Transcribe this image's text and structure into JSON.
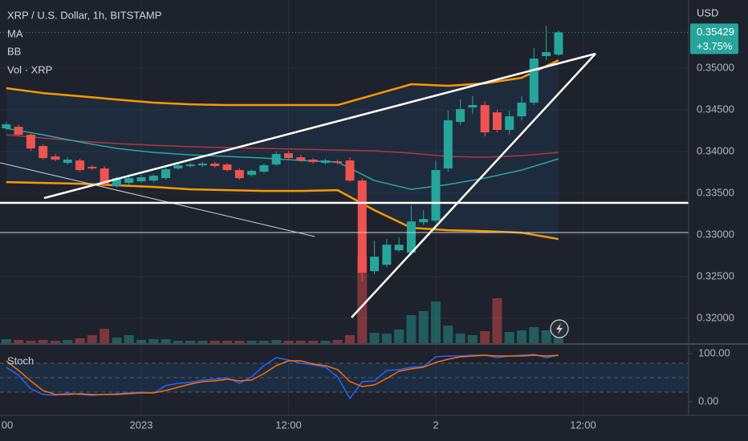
{
  "header": {
    "symbol": "XRP / U.S. Dollar, 1h, BITSTAMP",
    "indicators": [
      "MA",
      "BB",
      "Vol · XRP"
    ]
  },
  "chart_data": [
    {
      "type": "candlestick",
      "currency": "USD",
      "x": [
        -11,
        -10,
        -9,
        -8,
        -7,
        -6,
        -5,
        -4,
        -3,
        -2,
        -1,
        0,
        1,
        2,
        3,
        4,
        5,
        6,
        7,
        8,
        9,
        10,
        11,
        12,
        13,
        14,
        15,
        16,
        17,
        18,
        19,
        20,
        21,
        22,
        23,
        24,
        25,
        26,
        27,
        28,
        29,
        30,
        31,
        32,
        33,
        34
      ],
      "open": [
        0.34278,
        0.34297,
        0.34201,
        0.34066,
        0.33941,
        0.33864,
        0.33893,
        0.33816,
        0.33797,
        0.33585,
        0.33624,
        0.33643,
        0.33652,
        0.33681,
        0.33797,
        0.33826,
        0.33835,
        0.33855,
        0.33845,
        0.33778,
        0.3372,
        0.33758,
        0.33845,
        0.3398,
        0.33931,
        0.33903,
        0.33864,
        0.33883,
        0.33893,
        0.33652,
        0.32565,
        0.32642,
        0.32816,
        0.32787,
        0.33152,
        0.33171,
        0.33797,
        0.34355,
        0.34528,
        0.34557,
        0.3447,
        0.34259,
        0.34422,
        0.34586,
        0.35144,
        0.35163
      ],
      "high": [
        0.34355,
        0.34326,
        0.3423,
        0.34085,
        0.3397,
        0.33931,
        0.33912,
        0.33835,
        0.33826,
        0.33701,
        0.3371,
        0.3372,
        0.33729,
        0.33806,
        0.33855,
        0.33864,
        0.33874,
        0.33874,
        0.33864,
        0.33797,
        0.33787,
        0.33855,
        0.33999,
        0.34008,
        0.3396,
        0.33922,
        0.33912,
        0.33903,
        0.33931,
        0.33681,
        0.32931,
        0.3295,
        0.32969,
        0.33354,
        0.33297,
        0.33893,
        0.34489,
        0.34624,
        0.34663,
        0.34605,
        0.34499,
        0.34489,
        0.34663,
        0.3524,
        0.35509,
        0.35451
      ],
      "low": [
        0.34259,
        0.34182,
        0.34008,
        0.33903,
        0.33883,
        0.33845,
        0.33758,
        0.33778,
        0.33585,
        0.33566,
        0.33604,
        0.33624,
        0.33633,
        0.33662,
        0.33778,
        0.33806,
        0.33816,
        0.33806,
        0.33758,
        0.33662,
        0.33701,
        0.33739,
        0.33826,
        0.33903,
        0.33874,
        0.33855,
        0.33845,
        0.33845,
        0.33633,
        0.3245,
        0.32527,
        0.32614,
        0.32796,
        0.32758,
        0.33123,
        0.33143,
        0.33758,
        0.34316,
        0.34451,
        0.34182,
        0.3423,
        0.34201,
        0.34374,
        0.34557,
        0.35095,
        0.35144
      ],
      "close": [
        0.34326,
        0.34201,
        0.34037,
        0.33922,
        0.33903,
        0.33903,
        0.33778,
        0.33797,
        0.33604,
        0.33681,
        0.33681,
        0.33691,
        0.3371,
        0.33787,
        0.33835,
        0.33845,
        0.33855,
        0.33826,
        0.33778,
        0.33681,
        0.33768,
        0.33835,
        0.3397,
        0.33922,
        0.33893,
        0.33874,
        0.33893,
        0.33864,
        0.33652,
        0.32546,
        0.32739,
        0.32883,
        0.32883,
        0.33162,
        0.33191,
        0.33778,
        0.34374,
        0.34509,
        0.34557,
        0.3423,
        0.34259,
        0.34422,
        0.34586,
        0.35115,
        0.35192,
        0.35429
      ],
      "volume": [
        5,
        4,
        3,
        4,
        3,
        4,
        6,
        10,
        18,
        7,
        10,
        4,
        5,
        5,
        3,
        3,
        3,
        3,
        3,
        3,
        3,
        3,
        4,
        3,
        3,
        3,
        3,
        4,
        10,
        108,
        13,
        12,
        17,
        35,
        40,
        52,
        22,
        12,
        10,
        15,
        56,
        14,
        16,
        20,
        16,
        9
      ],
      "up_color": "#26a69a",
      "down_color": "#ef5350",
      "ma": {
        "color": "#b2373f",
        "x": [
          -11,
          -8,
          -5,
          -2,
          1,
          4,
          7,
          10,
          13,
          16,
          19,
          22,
          25,
          28,
          31,
          34
        ],
        "values": [
          0.34201,
          0.34162,
          0.34124,
          0.34095,
          0.34076,
          0.34057,
          0.34047,
          0.34037,
          0.34028,
          0.34018,
          0.34008,
          0.3398,
          0.33941,
          0.33931,
          0.33951,
          0.33989
        ]
      },
      "bollinger": {
        "basis_color": "#2aa7a1",
        "band_color": "#ff9800",
        "fill": "rgba(33,150,243,0.08)",
        "x": [
          -11,
          -8,
          -5,
          -2,
          1,
          4,
          7,
          10,
          13,
          16,
          19,
          22,
          25,
          28,
          31,
          34
        ],
        "upper": [
          0.34759,
          0.34701,
          0.34663,
          0.34624,
          0.34586,
          0.34566,
          0.34557,
          0.34557,
          0.34557,
          0.34557,
          0.34682,
          0.34807,
          0.34788,
          0.34817,
          0.34884,
          0.35095
        ],
        "basis": [
          0.34278,
          0.34201,
          0.34114,
          0.34037,
          0.33989,
          0.3396,
          0.33941,
          0.33922,
          0.33893,
          0.33874,
          0.33652,
          0.33547,
          0.33604,
          0.33681,
          0.33778,
          0.33912
        ],
        "lower": [
          0.33633,
          0.33624,
          0.33614,
          0.33595,
          0.33576,
          0.33547,
          0.33537,
          0.33527,
          0.33527,
          0.33537,
          0.33297,
          0.33085,
          0.33056,
          0.33046,
          0.33027,
          0.3295
        ]
      },
      "xlim": [
        -11.51,
        44.6
      ],
      "xticks": [
        {
          "value": -12,
          "label": "00"
        },
        {
          "value": 0,
          "label": "2023"
        },
        {
          "value": 12,
          "label": "12:00"
        },
        {
          "value": 24,
          "label": "2"
        },
        {
          "value": 36,
          "label": "12:00"
        }
      ],
      "ylim": [
        0.31702,
        0.35817
      ],
      "yticks": [
        {
          "value": 0.35,
          "label": "0.35000"
        },
        {
          "value": 0.345,
          "label": "0.34500"
        },
        {
          "value": 0.34,
          "label": "0.34000"
        },
        {
          "value": 0.335,
          "label": "0.33500"
        },
        {
          "value": 0.33,
          "label": "0.33000"
        },
        {
          "value": 0.325,
          "label": "0.32500"
        },
        {
          "value": 0.32,
          "label": "0.32000"
        }
      ],
      "grid": true,
      "last_price": 0.35429,
      "change_label": "+3.75%"
    },
    {
      "type": "line",
      "title": "Stoch",
      "x": [
        -11,
        -10,
        -9,
        -8,
        -7,
        -6,
        -5,
        -4,
        -3,
        -2,
        -1,
        0,
        1,
        2,
        3,
        4,
        5,
        6,
        7,
        8,
        9,
        10,
        11,
        12,
        13,
        14,
        15,
        16,
        17,
        18,
        19,
        20,
        21,
        22,
        23,
        24,
        25,
        26,
        27,
        28,
        29,
        30,
        31,
        32,
        33,
        34
      ],
      "series": [
        {
          "color": "#2962ff",
          "values": [
            71.7,
            55,
            26.7,
            15,
            13.3,
            18.3,
            15,
            13.3,
            15,
            16.7,
            18.3,
            20,
            18.3,
            33.3,
            38.3,
            40,
            45,
            46.7,
            50,
            38.3,
            51.7,
            75,
            91.7,
            86.7,
            80,
            76.7,
            71.7,
            51.7,
            6.7,
            41.7,
            43.3,
            65,
            66.7,
            71.7,
            73.3,
            93.3,
            95,
            95,
            96.7,
            96.7,
            91.7,
            95,
            96.7,
            98.3,
            91.7,
            96.7
          ]
        },
        {
          "color": "#ff6d00",
          "values": [
            85,
            65,
            43.3,
            23.3,
            15,
            15,
            16.7,
            15,
            15,
            15,
            16.7,
            18.3,
            18.3,
            23.3,
            30,
            36.7,
            41.7,
            43.3,
            46.7,
            43.3,
            45,
            58.3,
            75,
            85,
            85,
            78.3,
            75,
            66.7,
            41.7,
            31.7,
            35,
            48.3,
            63.3,
            68.3,
            71.7,
            81.7,
            88.3,
            93.3,
            95,
            96.7,
            95,
            95,
            95,
            96.7,
            95,
            96.7
          ]
        }
      ],
      "levels": [
        80,
        50,
        20
      ],
      "ylim": [
        -28.3,
        118.3
      ],
      "yticks": [
        {
          "value": 100,
          "label": "100.00"
        },
        {
          "value": 0,
          "label": "0.00"
        }
      ]
    }
  ]
}
